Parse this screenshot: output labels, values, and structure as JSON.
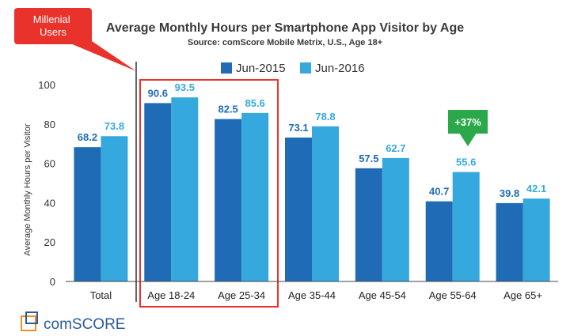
{
  "chart_data": {
    "type": "bar",
    "title": "Average Monthly Hours per Smartphone App Visitor by Age",
    "subtitle": "Source: comScore Mobile Metrix, U.S., Age 18+",
    "ylabel": "Average Monthly Hours per Visitor",
    "ylim": [
      0,
      100
    ],
    "yticks": [
      0,
      20,
      40,
      60,
      80,
      100
    ],
    "grid": false,
    "legend_position": "top",
    "categories": [
      "Total",
      "Age 18-24",
      "Age 25-34",
      "Age 35-44",
      "Age 45-54",
      "Age 55-64",
      "Age 65+"
    ],
    "series": [
      {
        "name": "Jun-2015",
        "color": "#1f6bb5",
        "values": [
          68.2,
          90.6,
          82.5,
          73.1,
          57.5,
          40.7,
          39.8
        ]
      },
      {
        "name": "Jun-2016",
        "color": "#35a9dd",
        "values": [
          73.8,
          93.5,
          85.6,
          78.8,
          62.7,
          55.6,
          42.1
        ]
      }
    ],
    "value_labels": {
      "Jun-2015": [
        "68.2",
        "90.6",
        "82.5",
        "73.1",
        "57.5",
        "40.7",
        "39.8"
      ],
      "Jun-2016": [
        "73.8",
        "93.5",
        "85.6",
        "78.8",
        "62.7",
        "55.6",
        "42.1"
      ]
    },
    "annotations": {
      "callout": {
        "text": "Millenial Users",
        "color": "#e8322b",
        "highlight_categories": [
          "Age 18-24",
          "Age 25-34"
        ]
      },
      "growth_badge": {
        "text": "+37%",
        "color": "#2aa84a",
        "category": "Age 55-64"
      }
    }
  },
  "logo": {
    "text": "comSCORE",
    "color": "#2a5b9c",
    "accent": "#f28c28"
  }
}
